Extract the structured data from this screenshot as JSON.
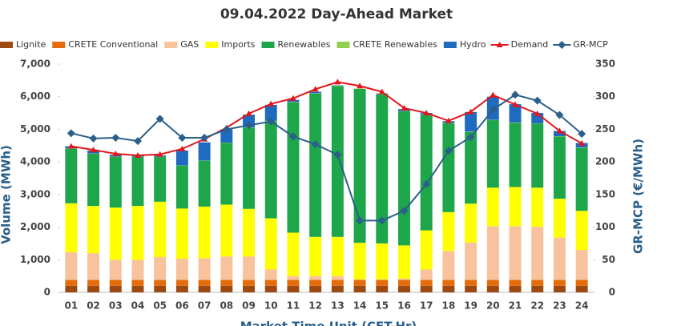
{
  "chart_data": {
    "type": "bar",
    "stacked": true,
    "title": "09.04.2022  Day-Ahead Market",
    "x_label": "Market Time Unit (CET-Hr)",
    "y_label": "Volume (MWh)",
    "y2_label": "GR-MCP (€/MWh)",
    "categories": [
      "01",
      "02",
      "03",
      "04",
      "05",
      "06",
      "07",
      "08",
      "09",
      "10",
      "11",
      "12",
      "13",
      "14",
      "15",
      "16",
      "17",
      "18",
      "19",
      "20",
      "21",
      "22",
      "23",
      "24"
    ],
    "ylim": [
      0,
      7000
    ],
    "yticks": [
      0,
      {
        "value": 1000,
        "label": "1,000"
      },
      {
        "value": 2000,
        "label": "2,000"
      },
      {
        "value": 3000,
        "label": "3,000"
      },
      {
        "value": 4000,
        "label": "4,000"
      },
      {
        "value": 5000,
        "label": "5,000"
      },
      {
        "value": 6000,
        "label": "6,000"
      },
      {
        "value": 7000,
        "label": "7,000"
      }
    ],
    "y2lim": [
      0,
      350
    ],
    "y2ticks": [
      0,
      50,
      100,
      150,
      200,
      250,
      300,
      350
    ],
    "series": [
      {
        "name": "Lignite",
        "type": "bar",
        "color": "#9c4a12",
        "values": [
          200,
          200,
          200,
          200,
          200,
          200,
          200,
          200,
          200,
          200,
          200,
          200,
          200,
          200,
          200,
          200,
          200,
          200,
          200,
          200,
          200,
          200,
          200,
          200
        ]
      },
      {
        "name": "CRETE Conventional",
        "type": "bar",
        "color": "#e46c0a",
        "values": [
          180,
          180,
          180,
          180,
          180,
          180,
          180,
          180,
          180,
          180,
          180,
          180,
          180,
          180,
          180,
          180,
          180,
          180,
          180,
          180,
          180,
          180,
          180,
          180
        ]
      },
      {
        "name": "GAS",
        "type": "bar",
        "color": "#f8c29c",
        "values": [
          850,
          820,
          620,
          620,
          700,
          650,
          670,
          720,
          720,
          320,
          120,
          120,
          120,
          20,
          20,
          40,
          320,
          890,
          1150,
          1650,
          1650,
          1630,
          1300,
          920
        ]
      },
      {
        "name": "Imports",
        "type": "bar",
        "color": "#ffff00",
        "values": [
          1500,
          1450,
          1600,
          1650,
          1700,
          1540,
          1580,
          1590,
          1460,
          1570,
          1330,
          1200,
          1200,
          1120,
          1100,
          1020,
          1200,
          1190,
          1190,
          1180,
          1200,
          1200,
          1190,
          1200
        ]
      },
      {
        "name": "Renewables",
        "type": "bar",
        "color": "#1ea64a",
        "values": [
          1670,
          1600,
          1550,
          1500,
          1370,
          1310,
          1400,
          1890,
          2490,
          2980,
          4000,
          4400,
          4630,
          4720,
          4570,
          4110,
          3550,
          2730,
          2200,
          2070,
          1970,
          1960,
          1910,
          1930
        ]
      },
      {
        "name": "CRETE Renewables",
        "type": "bar",
        "color": "#92d050",
        "values": [
          10,
          10,
          10,
          10,
          10,
          10,
          10,
          10,
          10,
          10,
          10,
          10,
          10,
          10,
          10,
          10,
          10,
          10,
          10,
          10,
          10,
          10,
          10,
          10
        ]
      },
      {
        "name": "Hydro",
        "type": "bar",
        "color": "#1f6bbf",
        "values": [
          70,
          90,
          60,
          40,
          40,
          460,
          560,
          410,
          390,
          490,
          60,
          40,
          10,
          0,
          20,
          60,
          40,
          50,
          600,
          710,
          560,
          320,
          160,
          140
        ]
      },
      {
        "name": "Demand",
        "type": "line",
        "color": "#e3151b",
        "marker": "triangle",
        "values": [
          4480,
          4370,
          4250,
          4200,
          4230,
          4400,
          4700,
          5050,
          5480,
          5780,
          5950,
          6230,
          6450,
          6330,
          6150,
          5650,
          5500,
          5260,
          5540,
          6050,
          5760,
          5480,
          4950,
          4570
        ]
      },
      {
        "name": "GR-MCP",
        "type": "line",
        "axis": "y2",
        "color": "#2a5f8a",
        "marker": "diamond",
        "values": [
          244,
          236,
          237,
          232,
          266,
          237,
          237,
          250,
          256,
          262,
          239,
          227,
          211,
          110,
          110,
          125,
          166,
          217,
          238,
          280,
          303,
          294,
          272,
          243
        ]
      }
    ]
  }
}
